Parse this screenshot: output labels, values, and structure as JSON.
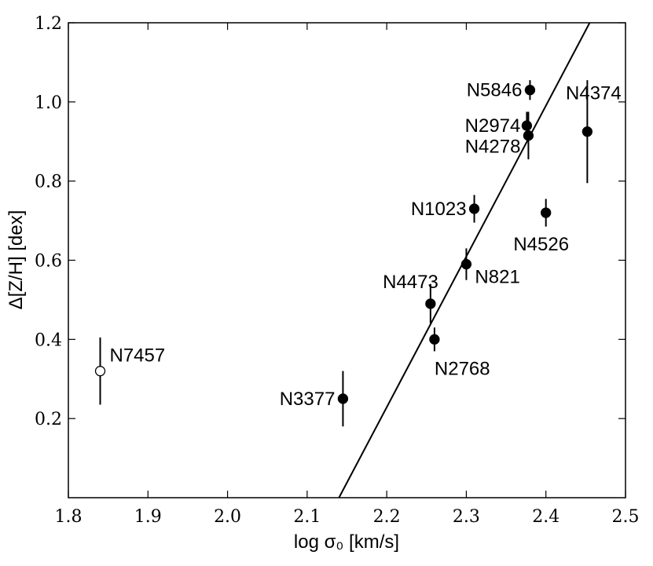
{
  "chart_data": {
    "type": "scatter",
    "title": "",
    "xlabel": "log σ₀ [km/s]",
    "ylabel": "Δ[Z/H] [dex]",
    "xlim": [
      1.8,
      2.5
    ],
    "ylim": [
      0.0,
      1.2
    ],
    "x_ticks": [
      "1.8",
      "1.9",
      "2.0",
      "2.1",
      "2.2",
      "2.3",
      "2.4",
      "2.5"
    ],
    "y_ticks": [
      "0.2",
      "0.4",
      "0.6",
      "0.8",
      "1.0",
      "1.2"
    ],
    "grid": false,
    "points": [
      {
        "label": "N7457",
        "x": 1.84,
        "y": 0.32,
        "err": 0.085,
        "filled": false
      },
      {
        "label": "N3377",
        "x": 2.145,
        "y": 0.25,
        "err": 0.07,
        "filled": true
      },
      {
        "label": "N2768",
        "x": 2.26,
        "y": 0.4,
        "err": 0.03,
        "filled": true
      },
      {
        "label": "N4473",
        "x": 2.255,
        "y": 0.49,
        "err": 0.05,
        "filled": true
      },
      {
        "label": "N821",
        "x": 2.3,
        "y": 0.59,
        "err": 0.04,
        "filled": true
      },
      {
        "label": "N1023",
        "x": 2.31,
        "y": 0.73,
        "err": 0.035,
        "filled": true
      },
      {
        "label": "N4526",
        "x": 2.4,
        "y": 0.72,
        "err": 0.035,
        "filled": true
      },
      {
        "label": "N4278",
        "x": 2.378,
        "y": 0.915,
        "err": 0.06,
        "filled": true
      },
      {
        "label": "N2974",
        "x": 2.376,
        "y": 0.94,
        "err": 0.035,
        "filled": true
      },
      {
        "label": "N5846",
        "x": 2.38,
        "y": 1.03,
        "err": 0.025,
        "filled": true
      },
      {
        "label": "N4374",
        "x": 2.452,
        "y": 0.925,
        "err": 0.13,
        "filled": true
      }
    ],
    "fit_line": {
      "x": [
        2.14,
        2.455
      ],
      "y": [
        0.0,
        1.2
      ]
    },
    "color": "#000000"
  }
}
